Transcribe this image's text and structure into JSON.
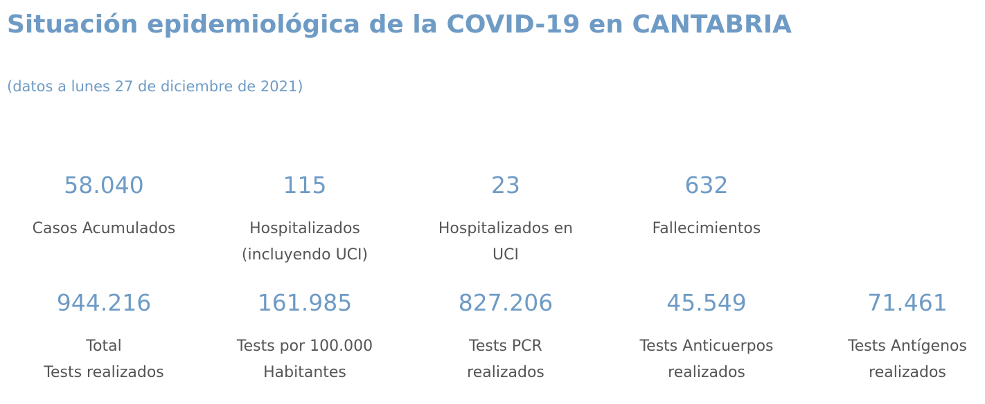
{
  "header": {
    "title": "Situación epidemiológica de la COVID-19 en CANTABRIA",
    "subtitle": "(datos a lunes 27 de diciembre de 2021)"
  },
  "stats_row1": [
    {
      "value": "58.040",
      "label": "Casos Acumulados"
    },
    {
      "value": "115",
      "label": "Hospitalizados\n(incluyendo UCI)"
    },
    {
      "value": "23",
      "label": "Hospitalizados en\nUCI"
    },
    {
      "value": "632",
      "label": "Fallecimientos"
    }
  ],
  "stats_row2": [
    {
      "value": "944.216",
      "label": "Total\nTests realizados"
    },
    {
      "value": "161.985",
      "label": "Tests por 100.000\nHabitantes"
    },
    {
      "value": "827.206",
      "label": "Tests PCR\nrealizados"
    },
    {
      "value": "45.549",
      "label": "Tests Anticuerpos\nrealizados"
    },
    {
      "value": "71.461",
      "label": "Tests Antígenos\nrealizados"
    }
  ],
  "colors": {
    "accent": "#6e9bc5",
    "label_text": "#555555",
    "background": "#ffffff"
  }
}
